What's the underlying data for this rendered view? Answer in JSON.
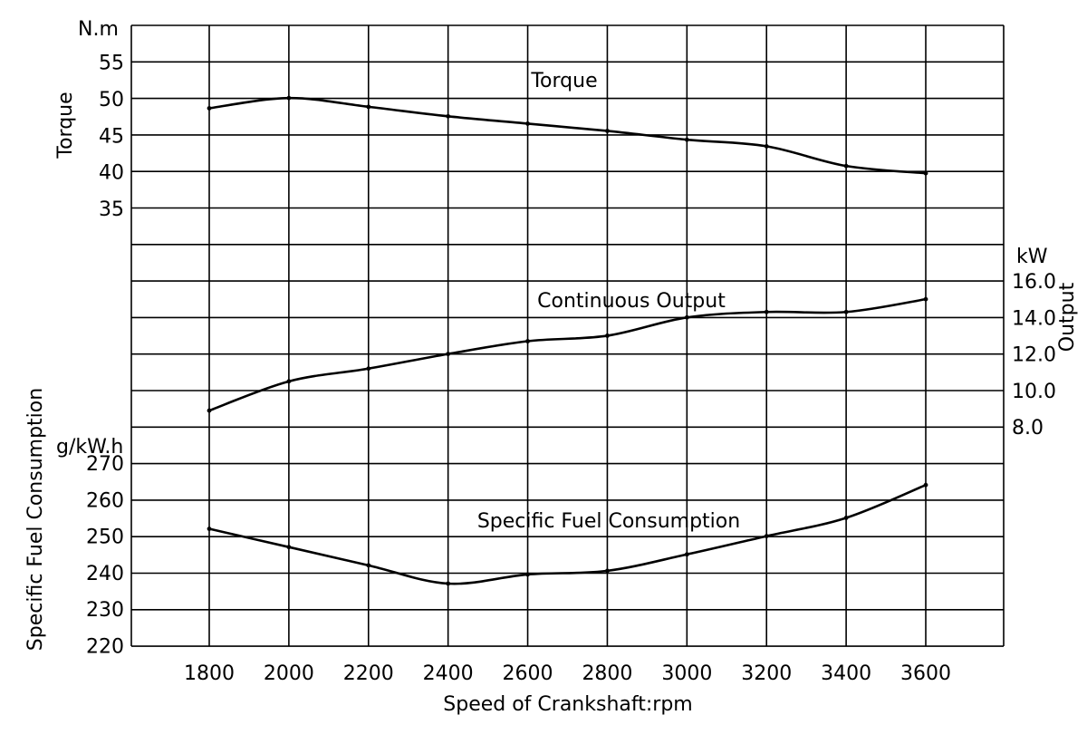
{
  "chart_data": {
    "type": "line",
    "xlabel": "Speed of Crankshaft:rpm",
    "x_ticks": [
      "1800",
      "2000",
      "2200",
      "2400",
      "2600",
      "2800",
      "3000",
      "3200",
      "3400",
      "3600"
    ],
    "xlim": [
      1600,
      3800
    ],
    "grid": true,
    "axes": {
      "torque": {
        "label": "Torque",
        "unit": "N.m",
        "ticks": [
          "55",
          "50",
          "45",
          "40",
          "35"
        ],
        "ylim": [
          30,
          60
        ],
        "side": "left"
      },
      "output": {
        "label": "Output",
        "unit": "kW",
        "ticks": [
          "16.0",
          "14.0",
          "12.0",
          "10.0",
          "8.0"
        ],
        "ylim": [
          6,
          18
        ],
        "side": "right"
      },
      "fuel": {
        "label": "Specific Fuel Consumption",
        "unit": "g/kW.h",
        "ticks": [
          "270",
          "260",
          "250",
          "240",
          "230",
          "220"
        ],
        "ylim": [
          215,
          275
        ],
        "side": "left"
      }
    },
    "series": [
      {
        "name": "Torque",
        "axis": "torque",
        "x": [
          1800,
          2000,
          2200,
          2400,
          2600,
          2800,
          3000,
          3200,
          3400,
          3600
        ],
        "values": [
          48.7,
          50.1,
          48.9,
          47.6,
          46.6,
          45.6,
          44.4,
          43.5,
          40.8,
          39.8
        ]
      },
      {
        "name": "Continuous Output",
        "axis": "output",
        "x": [
          1800,
          2000,
          2200,
          2400,
          2600,
          2800,
          3000,
          3200,
          3400,
          3600
        ],
        "values": [
          8.9,
          10.5,
          11.2,
          12.0,
          12.7,
          13.0,
          14.0,
          14.3,
          14.3,
          15.0
        ]
      },
      {
        "name": "Specific Fuel Consumption",
        "axis": "fuel",
        "x": [
          1800,
          2000,
          2200,
          2400,
          2600,
          2800,
          3000,
          3200,
          3400,
          3600
        ],
        "values": [
          252,
          247,
          242,
          237,
          239.5,
          240.5,
          245,
          250,
          255,
          264
        ]
      }
    ]
  }
}
